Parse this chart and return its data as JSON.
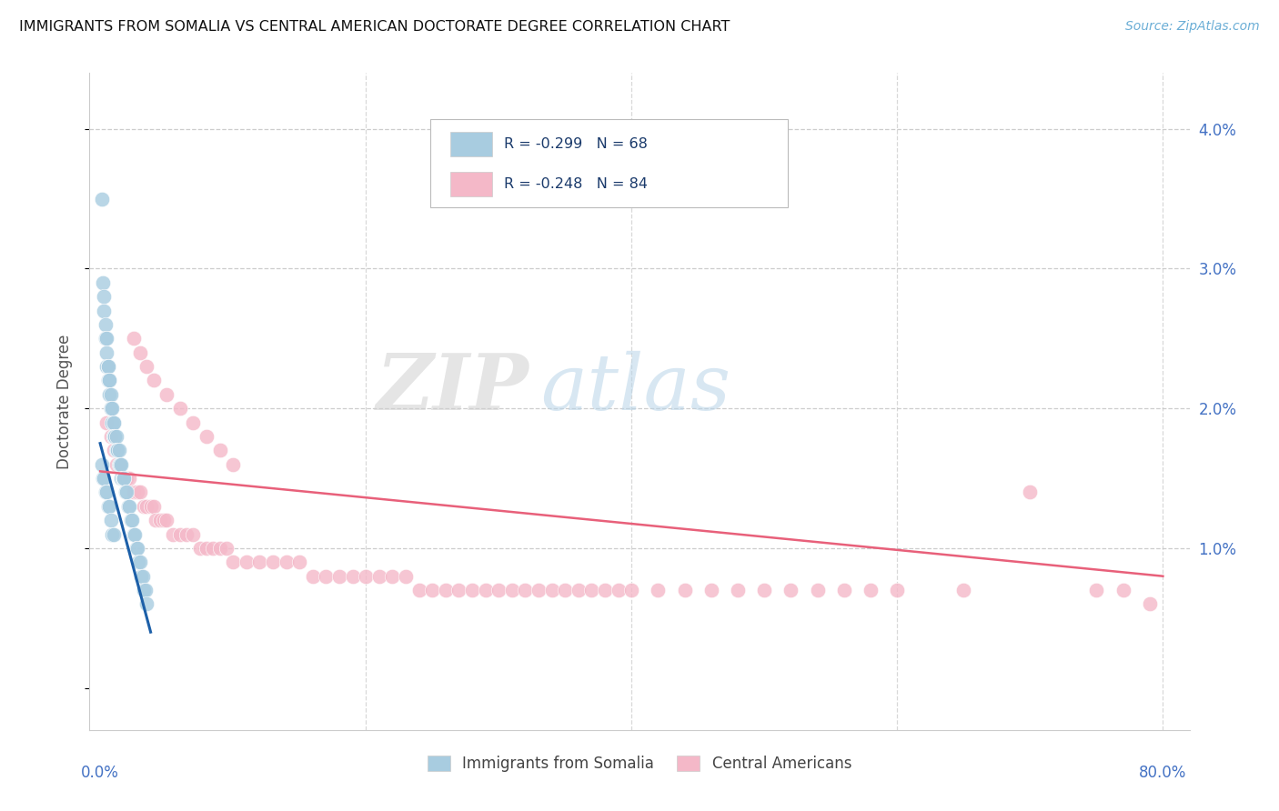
{
  "title": "IMMIGRANTS FROM SOMALIA VS CENTRAL AMERICAN DOCTORATE DEGREE CORRELATION CHART",
  "source": "Source: ZipAtlas.com",
  "ylabel": "Doctorate Degree",
  "ylim": [
    -0.003,
    0.044
  ],
  "xlim": [
    -0.008,
    0.82
  ],
  "ytick_vals": [
    0.0,
    0.01,
    0.02,
    0.03,
    0.04
  ],
  "ytick_labels": [
    "",
    "1.0%",
    "2.0%",
    "3.0%",
    "4.0%"
  ],
  "legend_r1": "R = -0.299   N = 68",
  "legend_r2": "R = -0.248   N = 84",
  "legend_text_color": "#1a3a6b",
  "somalia_color": "#a8cce0",
  "central_color": "#f4b8c8",
  "somalia_line_color": "#1c5fa8",
  "central_line_color": "#e8607a",
  "axis_color": "#4472c4",
  "grid_color": "#c8c8c8",
  "background": "#ffffff",
  "watermark_zip": "ZIP",
  "watermark_atlas": "atlas",
  "somalia_x": [
    0.001,
    0.002,
    0.003,
    0.003,
    0.004,
    0.004,
    0.005,
    0.005,
    0.005,
    0.006,
    0.006,
    0.006,
    0.007,
    0.007,
    0.007,
    0.008,
    0.008,
    0.008,
    0.009,
    0.009,
    0.009,
    0.01,
    0.01,
    0.01,
    0.01,
    0.011,
    0.011,
    0.012,
    0.012,
    0.013,
    0.013,
    0.014,
    0.014,
    0.015,
    0.015,
    0.016,
    0.016,
    0.017,
    0.017,
    0.018,
    0.018,
    0.019,
    0.02,
    0.021,
    0.022,
    0.023,
    0.024,
    0.025,
    0.026,
    0.027,
    0.028,
    0.029,
    0.03,
    0.031,
    0.032,
    0.033,
    0.034,
    0.035,
    0.001,
    0.002,
    0.003,
    0.004,
    0.005,
    0.006,
    0.007,
    0.008,
    0.009,
    0.01
  ],
  "somalia_y": [
    0.035,
    0.029,
    0.028,
    0.027,
    0.026,
    0.025,
    0.025,
    0.024,
    0.023,
    0.023,
    0.023,
    0.022,
    0.022,
    0.022,
    0.021,
    0.021,
    0.02,
    0.02,
    0.02,
    0.019,
    0.019,
    0.019,
    0.019,
    0.018,
    0.018,
    0.018,
    0.018,
    0.018,
    0.017,
    0.017,
    0.017,
    0.017,
    0.016,
    0.016,
    0.016,
    0.016,
    0.015,
    0.015,
    0.015,
    0.015,
    0.015,
    0.014,
    0.014,
    0.013,
    0.013,
    0.012,
    0.012,
    0.011,
    0.011,
    0.01,
    0.01,
    0.009,
    0.009,
    0.008,
    0.008,
    0.007,
    0.007,
    0.006,
    0.016,
    0.015,
    0.015,
    0.014,
    0.014,
    0.013,
    0.013,
    0.012,
    0.011,
    0.011
  ],
  "central_x": [
    0.005,
    0.008,
    0.01,
    0.012,
    0.015,
    0.018,
    0.02,
    0.022,
    0.025,
    0.028,
    0.03,
    0.033,
    0.035,
    0.038,
    0.04,
    0.042,
    0.045,
    0.048,
    0.05,
    0.055,
    0.06,
    0.065,
    0.07,
    0.075,
    0.08,
    0.085,
    0.09,
    0.095,
    0.1,
    0.11,
    0.12,
    0.13,
    0.14,
    0.15,
    0.16,
    0.17,
    0.18,
    0.19,
    0.2,
    0.21,
    0.22,
    0.23,
    0.24,
    0.25,
    0.26,
    0.27,
    0.28,
    0.29,
    0.3,
    0.31,
    0.32,
    0.33,
    0.34,
    0.35,
    0.36,
    0.37,
    0.38,
    0.39,
    0.4,
    0.42,
    0.44,
    0.46,
    0.48,
    0.5,
    0.52,
    0.54,
    0.56,
    0.58,
    0.6,
    0.65,
    0.7,
    0.75,
    0.77,
    0.79,
    0.025,
    0.03,
    0.035,
    0.04,
    0.05,
    0.06,
    0.07,
    0.08,
    0.09,
    0.1
  ],
  "central_y": [
    0.019,
    0.018,
    0.017,
    0.016,
    0.016,
    0.015,
    0.015,
    0.015,
    0.014,
    0.014,
    0.014,
    0.013,
    0.013,
    0.013,
    0.013,
    0.012,
    0.012,
    0.012,
    0.012,
    0.011,
    0.011,
    0.011,
    0.011,
    0.01,
    0.01,
    0.01,
    0.01,
    0.01,
    0.009,
    0.009,
    0.009,
    0.009,
    0.009,
    0.009,
    0.008,
    0.008,
    0.008,
    0.008,
    0.008,
    0.008,
    0.008,
    0.008,
    0.007,
    0.007,
    0.007,
    0.007,
    0.007,
    0.007,
    0.007,
    0.007,
    0.007,
    0.007,
    0.007,
    0.007,
    0.007,
    0.007,
    0.007,
    0.007,
    0.007,
    0.007,
    0.007,
    0.007,
    0.007,
    0.007,
    0.007,
    0.007,
    0.007,
    0.007,
    0.007,
    0.007,
    0.014,
    0.007,
    0.007,
    0.006,
    0.025,
    0.024,
    0.023,
    0.022,
    0.021,
    0.02,
    0.019,
    0.018,
    0.017,
    0.016
  ],
  "somalia_line_x": [
    0.0,
    0.038
  ],
  "somalia_line_y": [
    0.0175,
    0.004
  ],
  "central_line_x": [
    0.0,
    0.8
  ],
  "central_line_y": [
    0.0155,
    0.008
  ]
}
